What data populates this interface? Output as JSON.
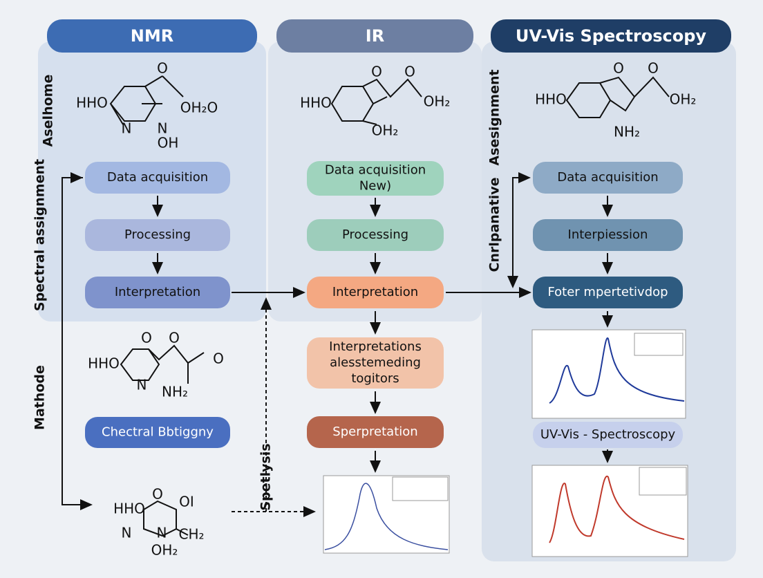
{
  "headers": [
    "NMR",
    "IR",
    "UV-Vis Spectroscopy"
  ],
  "side_labels": [
    "Aselhome",
    "Spectral assignment",
    "Mathode",
    "Asesignment",
    "Cnrlpanative",
    "Spetlysis"
  ],
  "molecules": [
    [
      "O",
      "HHO",
      "OH₂O",
      "N",
      "N",
      "OH"
    ],
    [
      "O",
      "O",
      "HHO",
      "OH₂",
      "OH₂"
    ],
    [
      "O",
      "O",
      "HHO",
      "OH₂",
      "NH₂"
    ],
    [
      "O",
      "O",
      "HHO",
      "O",
      "N",
      "NH₂"
    ],
    [
      "O",
      "HHO",
      "OI",
      "N",
      "N",
      "CH₂",
      "OH₂"
    ]
  ],
  "nmr_flow": [
    [
      "Data acquisition"
    ],
    [
      "Processing"
    ],
    [
      "Interpretation"
    ],
    [
      "Chectral Bbtiggny"
    ]
  ],
  "ir_flow": [
    [
      "Data acquisition",
      "New)"
    ],
    [
      "Processing"
    ],
    [
      "Interpretation"
    ],
    [
      "Interpretations",
      "alesstemeding",
      "togitors"
    ],
    [
      "Sperpretation"
    ]
  ],
  "uv_flow": [
    [
      "Data acquisition"
    ],
    [
      "Interpiession"
    ],
    [
      "Foter mpertetivdop"
    ],
    [
      "UV-Vis - Spectroscopy"
    ]
  ]
}
